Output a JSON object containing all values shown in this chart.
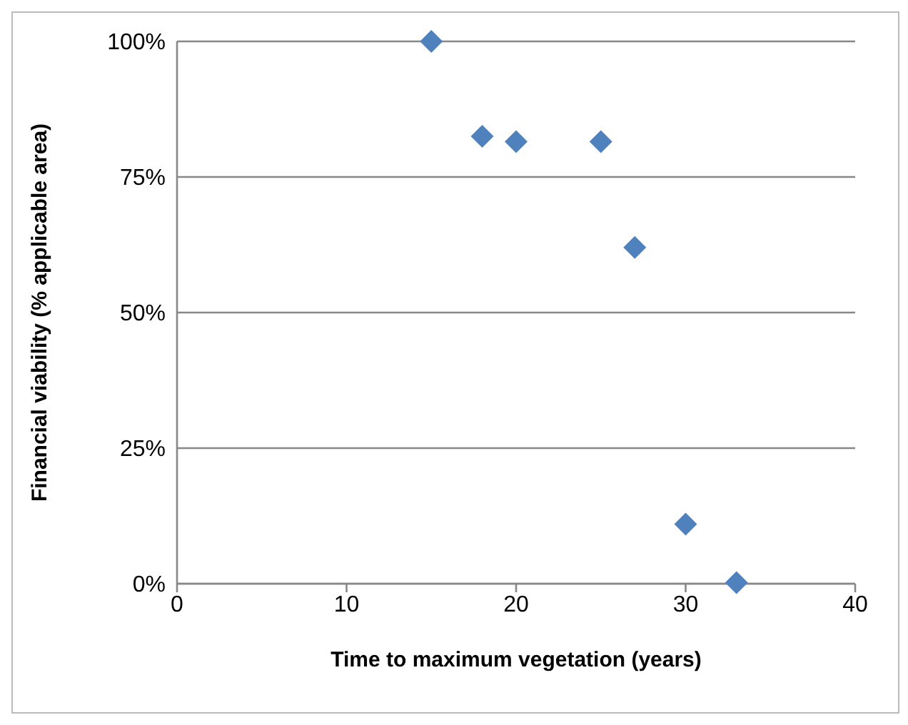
{
  "chart_data": {
    "type": "scatter",
    "xlabel": "Time to maximum vegetation (years)",
    "ylabel": "Financial viability (% applicable area)",
    "x": [
      15,
      18,
      20,
      25,
      27,
      30,
      33
    ],
    "series": [
      {
        "color": "#4f81bd",
        "values": [
          100,
          82.5,
          81.5,
          81.5,
          62,
          11,
          0.2
        ]
      }
    ],
    "xlim": [
      0,
      40
    ],
    "xticks": [
      0,
      10,
      20,
      30,
      40
    ],
    "ylim": [
      0,
      100
    ],
    "yticks": [
      {
        "value": 0,
        "label": "0%"
      },
      {
        "value": 25,
        "label": "25%"
      },
      {
        "value": 50,
        "label": "50%"
      },
      {
        "value": 75,
        "label": "75%"
      },
      {
        "value": 100,
        "label": "100%"
      }
    ],
    "grid": "y",
    "marker": "diamond"
  }
}
